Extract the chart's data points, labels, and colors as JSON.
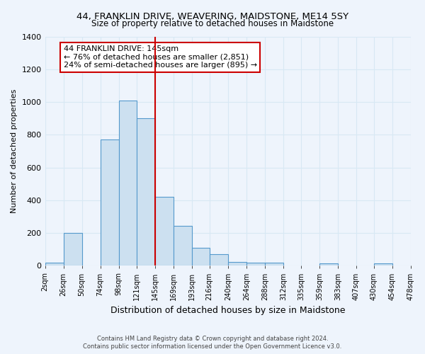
{
  "title": "44, FRANKLIN DRIVE, WEAVERING, MAIDSTONE, ME14 5SY",
  "subtitle": "Size of property relative to detached houses in Maidstone",
  "xlabel": "Distribution of detached houses by size in Maidstone",
  "ylabel": "Number of detached properties",
  "bin_edges": [
    2,
    26,
    50,
    74,
    98,
    121,
    145,
    169,
    193,
    216,
    240,
    264,
    288,
    312,
    335,
    359,
    383,
    407,
    430,
    454,
    478
  ],
  "bin_labels": [
    "2sqm",
    "26sqm",
    "50sqm",
    "74sqm",
    "98sqm",
    "121sqm",
    "145sqm",
    "169sqm",
    "193sqm",
    "216sqm",
    "240sqm",
    "264sqm",
    "288sqm",
    "312sqm",
    "335sqm",
    "359sqm",
    "383sqm",
    "407sqm",
    "430sqm",
    "454sqm",
    "478sqm"
  ],
  "counts": [
    20,
    200,
    0,
    770,
    1010,
    900,
    420,
    245,
    110,
    70,
    25,
    20,
    20,
    0,
    0,
    15,
    0,
    0,
    15,
    0
  ],
  "bar_color": "#cce0f0",
  "bar_edge_color": "#5599cc",
  "property_value": 145,
  "vline_color": "#cc0000",
  "ylim": [
    0,
    1400
  ],
  "yticks": [
    0,
    200,
    400,
    600,
    800,
    1000,
    1200,
    1400
  ],
  "annotation_title": "44 FRANKLIN DRIVE: 145sqm",
  "annotation_line1": "← 76% of detached houses are smaller (2,851)",
  "annotation_line2": "24% of semi-detached houses are larger (895) →",
  "annotation_box_color": "#ffffff",
  "annotation_box_edge": "#cc0000",
  "footer1": "Contains HM Land Registry data © Crown copyright and database right 2024.",
  "footer2": "Contains public sector information licensed under the Open Government Licence v3.0.",
  "background_color": "#eef4fc",
  "grid_color": "#d8e8f4"
}
